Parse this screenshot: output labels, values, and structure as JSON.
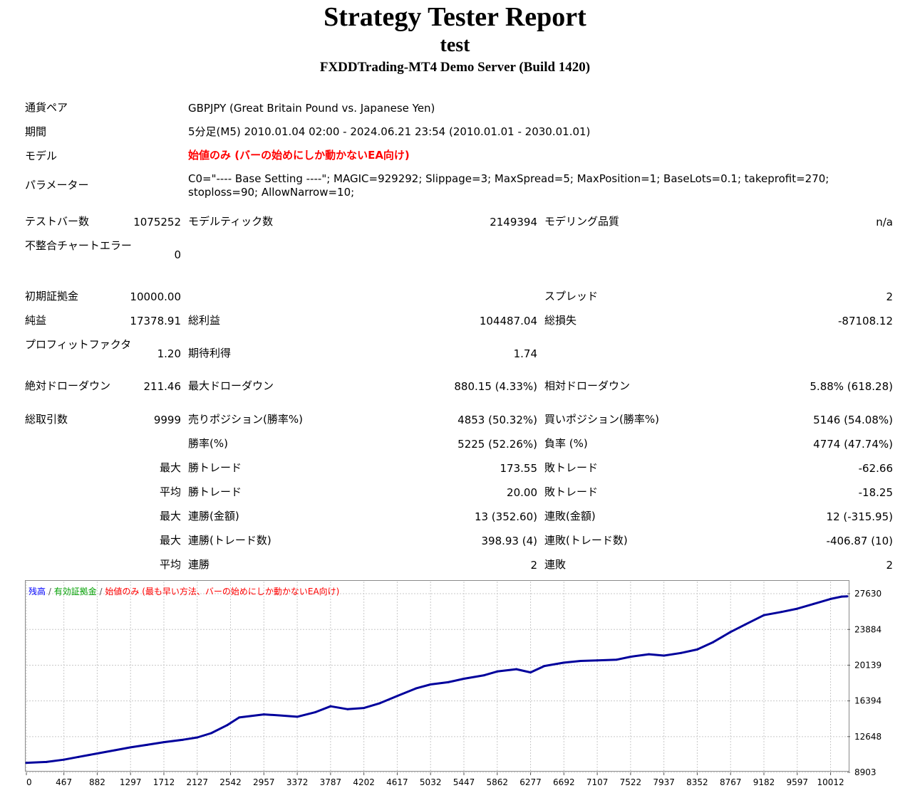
{
  "header": {
    "title": "Strategy Tester Report",
    "subtitle": "test",
    "server": "FXDDTrading-MT4 Demo Server (Build 1420)"
  },
  "info": {
    "symbol_label": "通貨ペア",
    "symbol_value": "GBPJPY (Great Britain Pound vs. Japanese Yen)",
    "period_label": "期間",
    "period_value": "5分足(M5) 2010.01.04 02:00 - 2024.06.21 23:54 (2010.01.01 - 2030.01.01)",
    "model_label": "モデル",
    "model_value": "始値のみ (バーの始めにしか動かないEA向け)",
    "params_label": "パラメーター",
    "params_value": "C0=\"---- Base Setting ----\"; MAGIC=929292; Slippage=3; MaxSpread=5; MaxPosition=1; BaseLots=0.1; takeprofit=270; stoploss=90; AllowNarrow=10;"
  },
  "stats": {
    "bars_label": "テストバー数",
    "bars_value": "1075252",
    "ticks_label": "モデルティック数",
    "ticks_value": "2149394",
    "quality_label": "モデリング品質",
    "quality_value": "n/a",
    "mismatch_label": "不整合チャートエラー",
    "mismatch_value": "0",
    "deposit_label": "初期証拠金",
    "deposit_value": "10000.00",
    "spread_label": "スプレッド",
    "spread_value": "2",
    "net_label": "純益",
    "net_value": "17378.91",
    "gross_profit_label": "総利益",
    "gross_profit_value": "104487.04",
    "gross_loss_label": "総損失",
    "gross_loss_value": "-87108.12",
    "pf_label": "プロフィットファクタ",
    "pf_value": "1.20",
    "payoff_label": "期待利得",
    "payoff_value": "1.74",
    "abs_dd_label": "絶対ドローダウン",
    "abs_dd_value": "211.46",
    "max_dd_label": "最大ドローダウン",
    "max_dd_value": "880.15 (4.33%)",
    "rel_dd_label": "相対ドローダウン",
    "rel_dd_value": "5.88% (618.28)",
    "trades_label": "総取引数",
    "trades_value": "9999",
    "short_label": "売りポジション(勝率%)",
    "short_value": "4853 (50.32%)",
    "long_label": "買いポジション(勝率%)",
    "long_value": "5146 (54.08%)",
    "win_label": "勝率(%)",
    "win_value": "5225 (52.26%)",
    "loss_label": "負率 (%)",
    "loss_value": "4774 (47.74%)",
    "max_word": "最大",
    "avg_word": "平均",
    "max_win_label": "勝トレード",
    "max_win_value": "173.55",
    "max_loss_label": "敗トレード",
    "max_loss_value": "-62.66",
    "avg_win_label": "勝トレード",
    "avg_win_value": "20.00",
    "avg_loss_label": "敗トレード",
    "avg_loss_value": "-18.25",
    "cons_win_money_label": "連勝(金額)",
    "cons_win_money_value": "13 (352.60)",
    "cons_loss_money_label": "連敗(金額)",
    "cons_loss_money_value": "12 (-315.95)",
    "cons_win_trades_label": "連勝(トレード数)",
    "cons_win_trades_value": "398.93 (4)",
    "cons_loss_trades_label": "連敗(トレード数)",
    "cons_loss_trades_value": "-406.87 (10)",
    "avg_cons_win_label": "連勝",
    "avg_cons_win_value": "2",
    "avg_cons_loss_label": "連敗",
    "avg_cons_loss_value": "2"
  },
  "chart_legend": {
    "balance": "残高",
    "sep1": " / ",
    "equity": "有効証拠金",
    "sep2": " / ",
    "model": "始値のみ (最も早い方法、バーの始めにしか動かないEA向け)"
  },
  "colors": {
    "balance_line": "#00009c",
    "legend_balance": "#0000ff",
    "legend_equity": "#00a000",
    "legend_model": "#ff0000",
    "grid": "#c8c8c8"
  },
  "chart_data": {
    "type": "line",
    "title": "",
    "series": [
      {
        "name": "残高",
        "x": [
          0,
          250,
          467,
          650,
          882,
          1100,
          1297,
          1500,
          1712,
          1950,
          2127,
          2300,
          2500,
          2650,
          2957,
          3150,
          3372,
          3600,
          3787,
          4000,
          4202,
          4400,
          4617,
          4850,
          5032,
          5250,
          5447,
          5700,
          5862,
          6100,
          6277,
          6450,
          6692,
          6900,
          7107,
          7350,
          7522,
          7750,
          7937,
          8150,
          8352,
          8550,
          8767,
          8950,
          9182,
          9400,
          9597,
          9800,
          10012,
          10150,
          10220
        ],
        "values": [
          9900,
          9990,
          10230,
          10520,
          10880,
          11220,
          11520,
          11780,
          12070,
          12320,
          12560,
          13010,
          13850,
          14660,
          14980,
          14870,
          14730,
          15220,
          15830,
          15520,
          15650,
          16150,
          16900,
          17700,
          18120,
          18350,
          18720,
          19080,
          19480,
          19720,
          19380,
          20050,
          20400,
          20580,
          20640,
          20720,
          21020,
          21280,
          21140,
          21420,
          21780,
          22550,
          23620,
          24400,
          25380,
          25720,
          26060,
          26560,
          27080,
          27330,
          27350
        ]
      }
    ],
    "xticks": [
      0,
      467,
      882,
      1297,
      1712,
      2127,
      2542,
      2957,
      3372,
      3787,
      4202,
      4617,
      5032,
      5447,
      5862,
      6277,
      6692,
      7107,
      7522,
      7937,
      8352,
      8767,
      9182,
      9597,
      10012
    ],
    "yticks": [
      8903,
      12648,
      16394,
      20139,
      23884,
      27630
    ],
    "xlim": [
      0,
      10220
    ],
    "ylim": [
      8903,
      28903
    ],
    "grid": true,
    "legend": "top-left"
  }
}
